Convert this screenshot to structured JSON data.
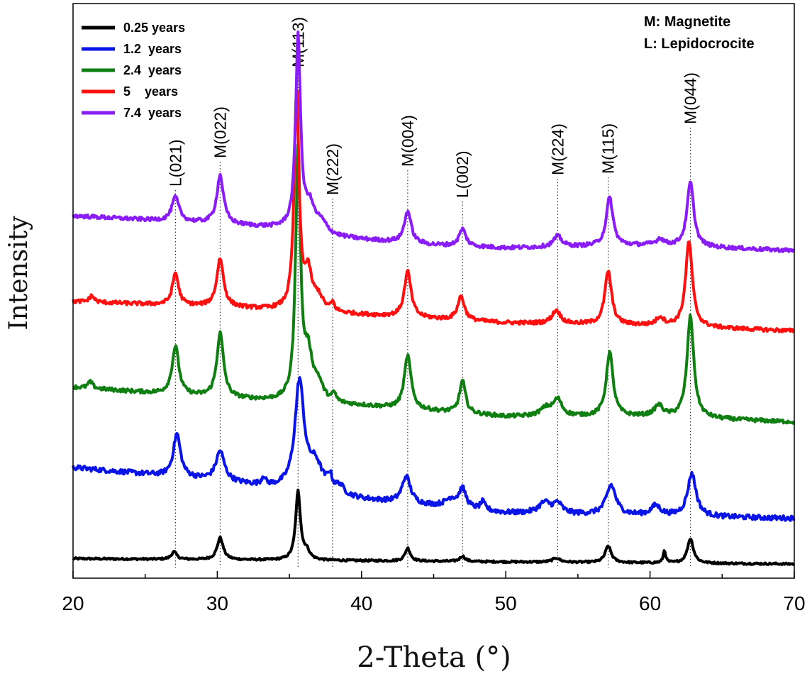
{
  "chart_data": {
    "type": "line",
    "xlabel": "2-Theta (°)",
    "ylabel": "Intensity",
    "xlim": [
      20,
      70
    ],
    "ylim": [
      0,
      100
    ],
    "x_ticks": [
      "20",
      "30",
      "40",
      "50",
      "60",
      "70"
    ],
    "y_ticks_shown": false,
    "legend_position": "top-left",
    "annotations_legend": [
      "M: Magnetite",
      "L: Lepidocrocite"
    ],
    "peak_markers": [
      {
        "label": "L(021)",
        "x": 27.1
      },
      {
        "label": "M(022)",
        "x": 30.2
      },
      {
        "label": "M(113)",
        "x": 35.6
      },
      {
        "label": "M(222)",
        "x": 38.0
      },
      {
        "label": "M(004)",
        "x": 43.2
      },
      {
        "label": "L(002)",
        "x": 47.0
      },
      {
        "label": "M(224)",
        "x": 53.6
      },
      {
        "label": "M(115)",
        "x": 57.1
      },
      {
        "label": "M(044)",
        "x": 62.8
      }
    ],
    "series": [
      {
        "name": "0.25 years",
        "color": "#000000",
        "baseline": [
          [
            20,
            1.0
          ],
          [
            70,
            0.0
          ]
        ],
        "peaks": [
          [
            27.0,
            1.4,
            0.22
          ],
          [
            30.2,
            4.1,
            0.25
          ],
          [
            35.6,
            12.8,
            0.2
          ],
          [
            36.2,
            1.5,
            0.25
          ],
          [
            43.2,
            2.4,
            0.22
          ],
          [
            47.0,
            1.0,
            0.22
          ],
          [
            53.5,
            0.8,
            0.3
          ],
          [
            57.1,
            3.1,
            0.25
          ],
          [
            61.0,
            2.3,
            0.1
          ],
          [
            62.8,
            4.6,
            0.25
          ]
        ]
      },
      {
        "name": "1.2  years",
        "color": "#0a14e6",
        "baseline": [
          [
            20,
            18.0
          ],
          [
            30,
            15.5
          ],
          [
            40,
            12.0
          ],
          [
            50,
            9.5
          ],
          [
            60,
            9.0
          ],
          [
            70,
            8.5
          ]
        ],
        "peaks": [
          [
            27.2,
            8.0,
            0.3
          ],
          [
            30.2,
            5.5,
            0.35
          ],
          [
            33.2,
            1.5,
            0.15
          ],
          [
            35.7,
            20.0,
            0.38
          ],
          [
            36.8,
            5.0,
            0.6
          ],
          [
            37.8,
            2.5,
            0.2
          ],
          [
            38.5,
            1.5,
            0.3
          ],
          [
            43.1,
            5.0,
            0.35
          ],
          [
            46.2,
            1.5,
            0.5
          ],
          [
            47.0,
            3.5,
            0.3
          ],
          [
            48.4,
            1.5,
            0.2
          ],
          [
            52.7,
            2.0,
            0.5
          ],
          [
            53.6,
            1.8,
            0.35
          ],
          [
            57.3,
            5.5,
            0.4
          ],
          [
            60.4,
            1.8,
            0.4
          ],
          [
            62.9,
            8.0,
            0.35
          ]
        ]
      },
      {
        "name": "2.4  years",
        "color": "#0f7f12",
        "baseline": [
          [
            20,
            33.0
          ],
          [
            30,
            31.0
          ],
          [
            40,
            29.5
          ],
          [
            50,
            27.5
          ],
          [
            60,
            27.5
          ],
          [
            70,
            26.5
          ]
        ],
        "peaks": [
          [
            21.2,
            1.2,
            0.2
          ],
          [
            27.1,
            9.0,
            0.28
          ],
          [
            30.2,
            12.0,
            0.28
          ],
          [
            35.6,
            46.5,
            0.2
          ],
          [
            36.3,
            8.0,
            0.35
          ],
          [
            37.0,
            3.0,
            0.4
          ],
          [
            38.1,
            1.5,
            0.15
          ],
          [
            43.2,
            10.0,
            0.28
          ],
          [
            47.0,
            6.0,
            0.25
          ],
          [
            53.6,
            3.0,
            0.35
          ],
          [
            52.8,
            1.5,
            0.5
          ],
          [
            57.2,
            12.0,
            0.28
          ],
          [
            60.6,
            2.0,
            0.35
          ],
          [
            62.8,
            19.0,
            0.28
          ]
        ]
      },
      {
        "name": "5    years",
        "color": "#ff1010",
        "baseline": [
          [
            20,
            49.0
          ],
          [
            30,
            48.0
          ],
          [
            40,
            46.5
          ],
          [
            50,
            45.0
          ],
          [
            60,
            44.5
          ],
          [
            70,
            43.5
          ]
        ],
        "peaks": [
          [
            21.3,
            1.2,
            0.2
          ],
          [
            27.1,
            6.0,
            0.25
          ],
          [
            30.2,
            9.0,
            0.28
          ],
          [
            35.5,
            41.0,
            0.2
          ],
          [
            36.3,
            6.5,
            0.3
          ],
          [
            37.0,
            2.5,
            0.4
          ],
          [
            38.0,
            1.5,
            0.15
          ],
          [
            43.2,
            8.5,
            0.28
          ],
          [
            46.9,
            4.5,
            0.28
          ],
          [
            53.5,
            2.5,
            0.35
          ],
          [
            57.1,
            10.0,
            0.28
          ],
          [
            60.7,
            1.5,
            0.3
          ],
          [
            62.7,
            16.0,
            0.28
          ]
        ]
      },
      {
        "name": "7.4  years",
        "color": "#8a1cf7",
        "baseline": [
          [
            20,
            65.0
          ],
          [
            30,
            63.5
          ],
          [
            35,
            62.5
          ],
          [
            38,
            61.0
          ],
          [
            45,
            59.5
          ],
          [
            50,
            59.0
          ],
          [
            60,
            59.5
          ],
          [
            70,
            58.5
          ]
        ],
        "peaks": [
          [
            27.1,
            4.5,
            0.3
          ],
          [
            30.2,
            9.0,
            0.28
          ],
          [
            35.6,
            36.0,
            0.2
          ],
          [
            36.4,
            4.5,
            0.4
          ],
          [
            37.2,
            2.0,
            0.5
          ],
          [
            43.2,
            6.0,
            0.28
          ],
          [
            47.0,
            3.2,
            0.28
          ],
          [
            53.6,
            2.0,
            0.35
          ],
          [
            57.2,
            9.0,
            0.28
          ],
          [
            60.7,
            1.2,
            0.3
          ],
          [
            62.8,
            12.0,
            0.28
          ]
        ]
      }
    ]
  }
}
